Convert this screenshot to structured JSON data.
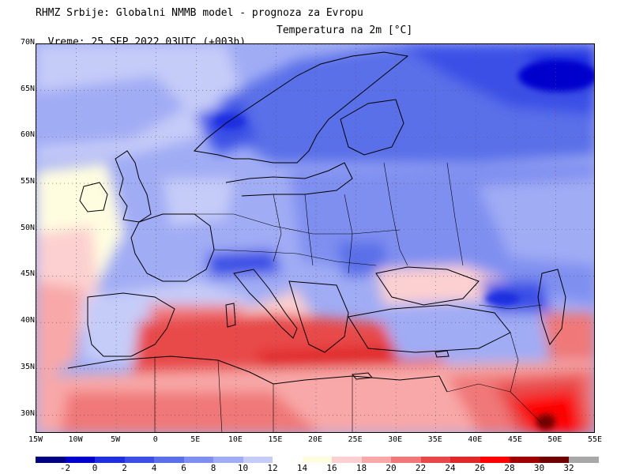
{
  "header": {
    "line1": "RHMZ Srbije: Globalni NMMB model - prognoza za Evropu",
    "line2_left": "Vreme: 25 SEP 2022 03UTC (+003h)",
    "line2_right": "Temperatura na 2m [°C]"
  },
  "map": {
    "lat_labels": [
      "70N",
      "65N",
      "60N",
      "55N",
      "50N",
      "45N",
      "40N",
      "35N",
      "30N"
    ],
    "lon_labels": [
      "15W",
      "10W",
      "5W",
      "0",
      "5E",
      "10E",
      "15E",
      "20E",
      "25E",
      "30E",
      "35E",
      "40E",
      "45E",
      "50E",
      "55E"
    ],
    "extent": {
      "lon_min": -15,
      "lon_max": 55,
      "lat_min": 28,
      "lat_max": 70
    }
  },
  "colorbar": {
    "labels": [
      "-2",
      "0",
      "2",
      "4",
      "6",
      "8",
      "10",
      "12",
      "14",
      "16",
      "18",
      "20",
      "22",
      "24",
      "26",
      "28",
      "30",
      "32"
    ],
    "colors": [
      "#000080",
      "#0000cd",
      "#1f2fe0",
      "#3b4fe6",
      "#5a6fe8",
      "#7f8ff0",
      "#a0acf4",
      "#c6ccf8",
      "#ffffff",
      "#fffde0",
      "#fcd0d0",
      "#f8a8a8",
      "#f07878",
      "#e84848",
      "#e02828",
      "#ff0000",
      "#a00000",
      "#700000",
      "#a8a8a8"
    ]
  }
}
